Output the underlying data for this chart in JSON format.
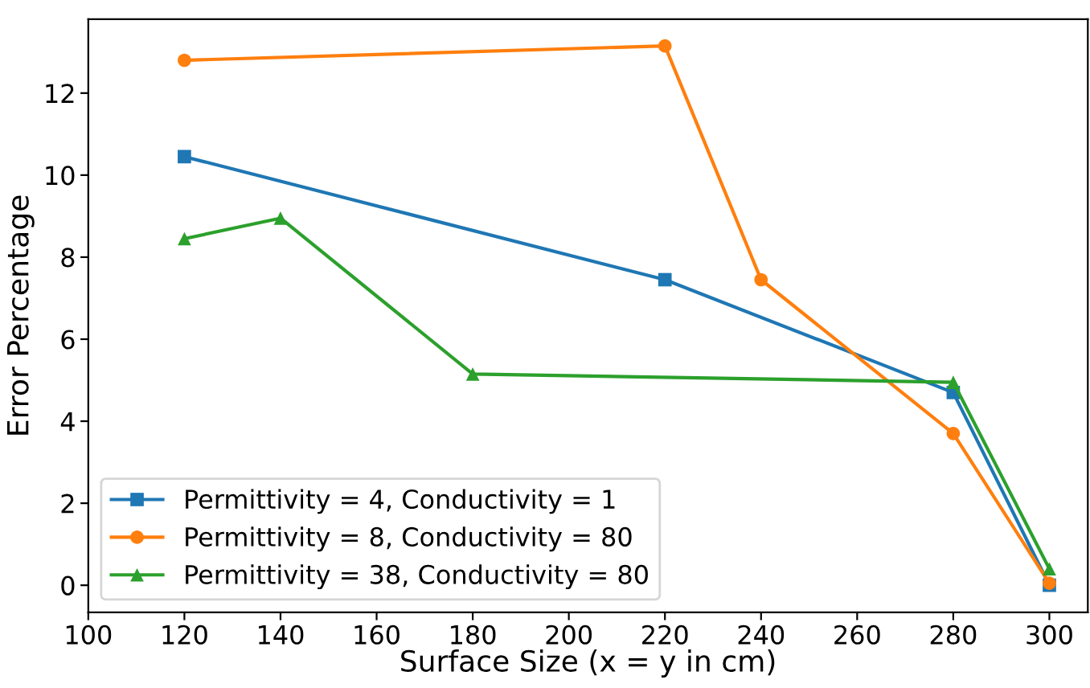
{
  "chart_data": {
    "type": "line",
    "xlabel": "Surface Size (x = y in cm)",
    "ylabel": "Error Percentage",
    "series": [
      {
        "name": "Permittivity = 4, Conductivity = 1",
        "color": "#1f77b4",
        "marker": "square",
        "x": [
          120,
          220,
          280,
          300
        ],
        "values": [
          10.45,
          7.45,
          4.7,
          0.0
        ]
      },
      {
        "name": "Permittivity = 8, Conductivity = 80",
        "color": "#ff7f0e",
        "marker": "circle",
        "x": [
          120,
          220,
          240,
          280,
          300
        ],
        "values": [
          12.8,
          13.15,
          7.45,
          3.7,
          0.05
        ]
      },
      {
        "name": "Permittivity = 38, Conductivity = 80",
        "color": "#2ca02c",
        "marker": "triangle",
        "x": [
          120,
          140,
          180,
          280,
          300
        ],
        "values": [
          8.45,
          8.95,
          5.15,
          4.95,
          0.4
        ]
      }
    ],
    "xlim": [
      100,
      308
    ],
    "ylim": [
      -0.66,
      13.8
    ],
    "xticks": [
      100,
      120,
      140,
      160,
      180,
      200,
      220,
      240,
      260,
      280,
      300
    ],
    "yticks": [
      0,
      2,
      4,
      6,
      8,
      10,
      12
    ],
    "grid": false,
    "legend": "bottom left",
    "line_style": "solid"
  }
}
